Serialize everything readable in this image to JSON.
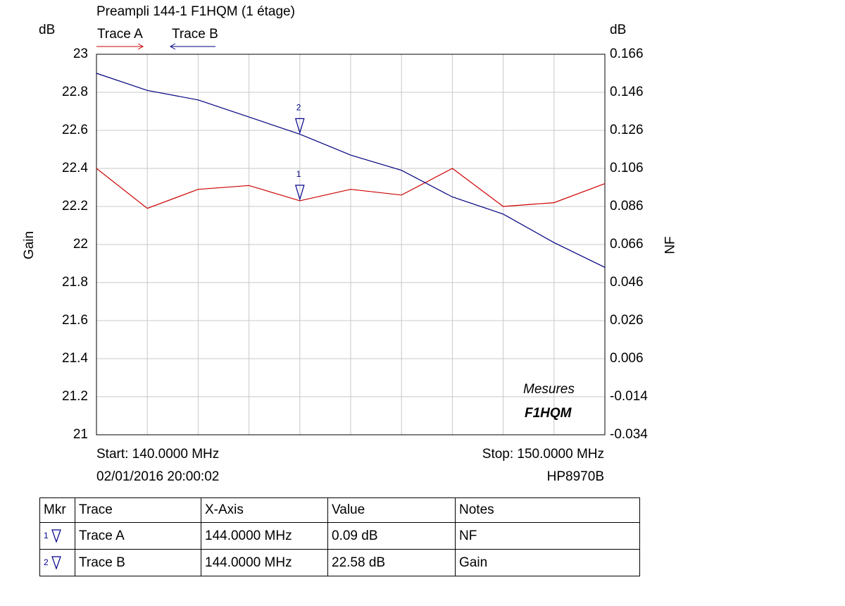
{
  "chart_data": {
    "type": "line",
    "title": "Preampli 144-1 F1HQM (1 étage)",
    "x": [
      140,
      141,
      142,
      143,
      144,
      145,
      146,
      147,
      148,
      149,
      150
    ],
    "x_range": [
      140,
      150
    ],
    "left_axis": {
      "unit": "dB",
      "label": "Gain",
      "range": [
        21,
        23
      ],
      "ticks": [
        "23",
        "22.8",
        "22.6",
        "22.4",
        "22.2",
        "22",
        "21.8",
        "21.6",
        "21.4",
        "21.2",
        "21"
      ]
    },
    "right_axis": {
      "unit": "dB",
      "label": "NF",
      "range": [
        -0.034,
        0.166
      ],
      "ticks": [
        "0.166",
        "0.146",
        "0.126",
        "0.106",
        "0.086",
        "0.066",
        "0.046",
        "0.026",
        "0.006",
        "-0.014",
        "-0.034"
      ]
    },
    "grid": true,
    "series": [
      {
        "name": "Trace A",
        "axis": "right",
        "color": "#cc0000",
        "values": [
          0.106,
          0.085,
          0.095,
          0.097,
          0.089,
          0.095,
          0.092,
          0.106,
          0.086,
          0.088,
          0.098
        ]
      },
      {
        "name": "Trace B",
        "axis": "left",
        "color": "#000080",
        "values": [
          22.9,
          22.81,
          22.76,
          22.67,
          22.58,
          22.47,
          22.39,
          22.25,
          22.16,
          22.01,
          21.88
        ]
      }
    ],
    "markers": [
      {
        "id": "1",
        "series": "Trace A",
        "x": 144
      },
      {
        "id": "2",
        "series": "Trace B",
        "x": 144
      }
    ],
    "start_label": "Start: 140.0000 MHz",
    "stop_label": "Stop: 150.0000 MHz",
    "timestamp": "02/01/2016 20:00:02",
    "instrument": "HP8970B",
    "stamp": {
      "line1": "Mesures",
      "line2": "F1HQM"
    }
  },
  "marker_table": {
    "headers": [
      "Mkr",
      "Trace",
      "X-Axis",
      "Value",
      "Notes"
    ],
    "rows": [
      {
        "mkr": "1",
        "trace": "Trace A",
        "x_axis": "144.0000 MHz",
        "value": "0.09 dB",
        "notes": "NF"
      },
      {
        "mkr": "2",
        "trace": "Trace B",
        "x_axis": "144.0000 MHz",
        "value": "22.58 dB",
        "notes": "Gain"
      }
    ]
  }
}
